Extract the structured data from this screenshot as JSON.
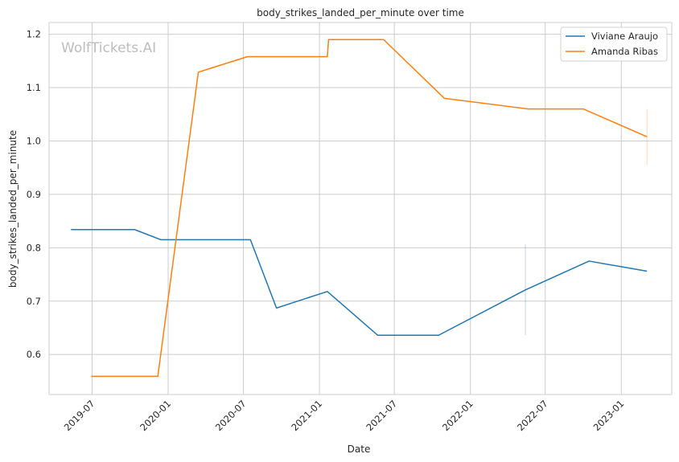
{
  "chart_data": {
    "type": "line",
    "title": "body_strikes_landed_per_minute over time",
    "xlabel": "Date",
    "ylabel": "body_strikes_landed_per_minute",
    "watermark": "WolfTickets.AI",
    "xlim": [
      "2019-03-19",
      "2023-05-03"
    ],
    "ylim": [
      0.525,
      1.222
    ],
    "x_ticks": [
      "2019-07",
      "2020-01",
      "2020-07",
      "2021-01",
      "2021-07",
      "2022-01",
      "2022-07",
      "2023-01"
    ],
    "y_ticks": [
      0.6,
      0.7,
      0.8,
      0.9,
      1.0,
      1.1,
      1.2
    ],
    "y_tick_labels": [
      "0.6",
      "0.7",
      "0.8",
      "0.9",
      "1.0",
      "1.1",
      "1.2"
    ],
    "grid": true,
    "legend_position": "top-right",
    "colors": {
      "Viviane Araujo": "#1f77b4",
      "Amanda Ribas": "#ff7f0e"
    },
    "series": [
      {
        "name": "Viviane Araujo",
        "x": [
          "2019-05-11",
          "2019-10-12",
          "2019-12-14",
          "2020-07-18",
          "2020-09-19",
          "2021-01-20",
          "2021-05-22",
          "2021-10-16",
          "2022-05-14",
          "2022-10-15",
          "2023-03-04"
        ],
        "y": [
          0.834,
          0.834,
          0.815,
          0.815,
          0.687,
          0.718,
          0.636,
          0.636,
          0.721,
          0.775,
          0.756
        ],
        "error_bar": {
          "x": "2022-05-14",
          "low": 0.636,
          "high": 0.806
        }
      },
      {
        "name": "Amanda Ribas",
        "x": [
          "2019-06-29",
          "2019-12-07",
          "2020-03-14",
          "2020-07-11",
          "2021-01-20",
          "2021-01-23",
          "2021-06-05",
          "2021-10-30",
          "2022-05-21",
          "2022-10-01",
          "2023-03-04"
        ],
        "y": [
          0.559,
          0.559,
          1.129,
          1.158,
          1.158,
          1.19,
          1.19,
          1.08,
          1.06,
          1.06,
          1.008
        ],
        "error_bar": {
          "x": "2023-03-04",
          "low": 0.955,
          "high": 1.06
        }
      }
    ]
  }
}
